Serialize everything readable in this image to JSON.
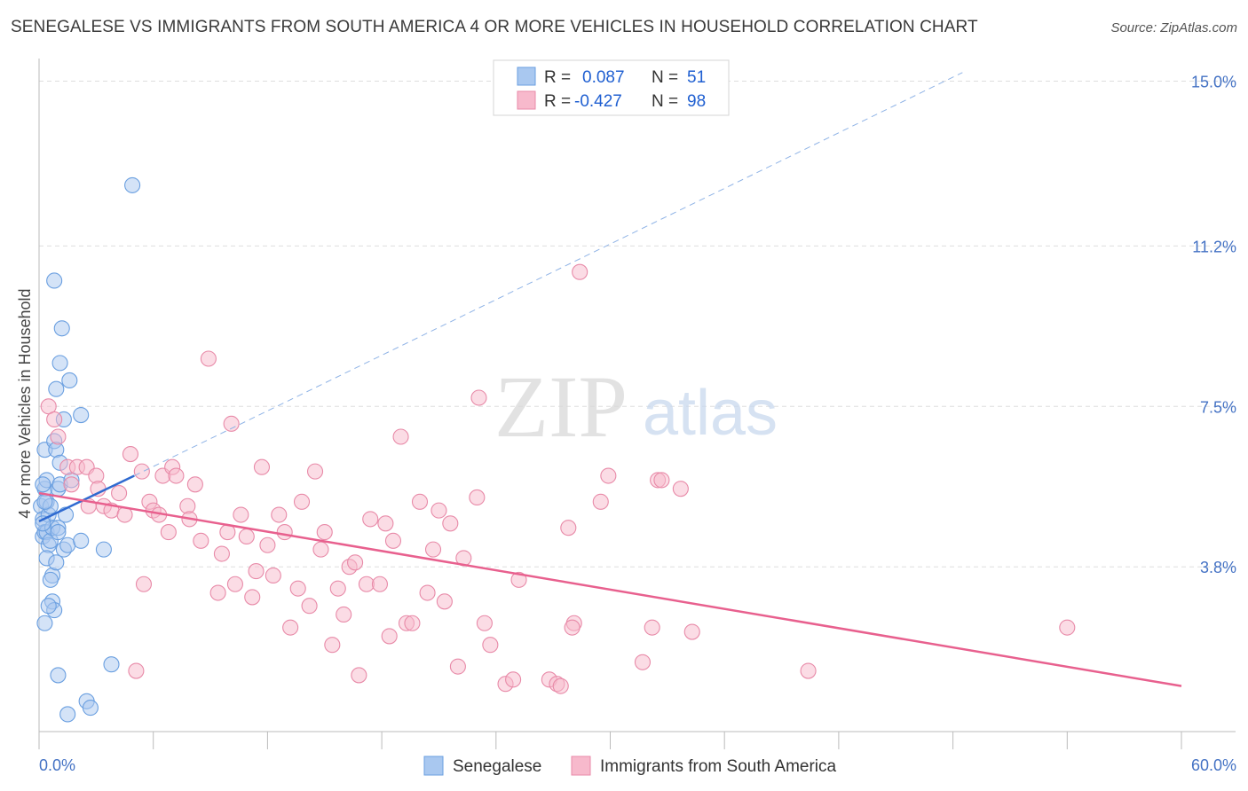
{
  "title": "SENEGALESE VS IMMIGRANTS FROM SOUTH AMERICA 4 OR MORE VEHICLES IN HOUSEHOLD CORRELATION CHART",
  "source": "Source: ZipAtlas.com",
  "watermark": {
    "zip": "ZIP",
    "atlas": "atlas"
  },
  "legend_top": {
    "r_label": "R =",
    "n_label": "N =",
    "rows": [
      {
        "r": "0.087",
        "n": "51",
        "color": "#a9c8f0"
      },
      {
        "r": "-0.427",
        "n": "98",
        "color": "#f7b9cc"
      }
    ]
  },
  "legend_bottom": [
    {
      "label": "Senegalese",
      "color": "#a9c8f0"
    },
    {
      "label": "Immigrants from South America",
      "color": "#f7b9cc"
    }
  ],
  "chart_data": {
    "type": "scatter",
    "ylabel": "4 or more Vehicles in Household",
    "xlim": [
      0,
      60
    ],
    "ylim": [
      0,
      15.4
    ],
    "x_tick_labels": [
      {
        "value": 0,
        "label": "0.0%"
      },
      {
        "value": 60,
        "label": "60.0%"
      }
    ],
    "y_tick_labels": [
      {
        "value": 3.8,
        "label": "3.8%"
      },
      {
        "value": 7.5,
        "label": "7.5%"
      },
      {
        "value": 11.2,
        "label": "11.2%"
      },
      {
        "value": 15.0,
        "label": "15.0%"
      }
    ],
    "grid": true,
    "series": [
      {
        "name": "Senegalese",
        "color": "#6a9fe0",
        "fill": "#a9c8f0",
        "trend": {
          "x0": 0,
          "y0": 4.85,
          "x1": 5.0,
          "y1": 5.9,
          "dash_to_x": 48.5,
          "dash_to_y": 15.2,
          "color": "#2f6ad0"
        },
        "points": [
          [
            0.1,
            5.2
          ],
          [
            0.2,
            4.5
          ],
          [
            0.2,
            4.9
          ],
          [
            0.3,
            4.6
          ],
          [
            0.3,
            5.6
          ],
          [
            0.3,
            6.5
          ],
          [
            0.4,
            4.6
          ],
          [
            0.4,
            5.3
          ],
          [
            0.4,
            5.8
          ],
          [
            0.5,
            4.3
          ],
          [
            0.5,
            5.0
          ],
          [
            0.6,
            4.4
          ],
          [
            0.6,
            5.2
          ],
          [
            0.7,
            4.7
          ],
          [
            0.7,
            3.6
          ],
          [
            0.7,
            3.0
          ],
          [
            0.8,
            2.8
          ],
          [
            0.8,
            6.7
          ],
          [
            0.8,
            10.4
          ],
          [
            0.9,
            7.9
          ],
          [
            0.9,
            6.5
          ],
          [
            1.0,
            5.6
          ],
          [
            1.0,
            4.7
          ],
          [
            1.0,
            1.3
          ],
          [
            1.1,
            6.2
          ],
          [
            1.1,
            8.5
          ],
          [
            1.1,
            5.7
          ],
          [
            1.2,
            9.3
          ],
          [
            1.3,
            4.2
          ],
          [
            1.3,
            7.2
          ],
          [
            1.4,
            5.0
          ],
          [
            1.5,
            0.4
          ],
          [
            1.5,
            4.3
          ],
          [
            1.6,
            8.1
          ],
          [
            1.7,
            5.8
          ],
          [
            2.2,
            7.3
          ],
          [
            2.2,
            4.4
          ],
          [
            2.5,
            0.7
          ],
          [
            2.7,
            0.55
          ],
          [
            3.4,
            4.2
          ],
          [
            3.8,
            1.55
          ],
          [
            4.9,
            12.6
          ],
          [
            0.2,
            4.8
          ],
          [
            0.4,
            4.0
          ],
          [
            0.6,
            3.5
          ],
          [
            0.3,
            2.5
          ],
          [
            0.5,
            2.9
          ],
          [
            0.9,
            3.9
          ],
          [
            0.3,
            5.3
          ],
          [
            1.0,
            4.6
          ],
          [
            0.2,
            5.7
          ]
        ]
      },
      {
        "name": "Immigrants from South America",
        "color": "#e88aa8",
        "fill": "#f7b9cc",
        "trend": {
          "x0": 0,
          "y0": 5.5,
          "x1": 60,
          "y1": 1.05,
          "color": "#e8608e"
        },
        "points": [
          [
            0.5,
            7.5
          ],
          [
            0.8,
            7.2
          ],
          [
            1.0,
            6.8
          ],
          [
            1.5,
            6.1
          ],
          [
            1.7,
            5.7
          ],
          [
            2.0,
            6.1
          ],
          [
            2.5,
            6.1
          ],
          [
            3.0,
            5.9
          ],
          [
            2.6,
            5.2
          ],
          [
            3.1,
            5.6
          ],
          [
            3.4,
            5.2
          ],
          [
            3.8,
            5.1
          ],
          [
            4.2,
            5.5
          ],
          [
            4.5,
            5.0
          ],
          [
            4.8,
            6.4
          ],
          [
            5.1,
            1.4
          ],
          [
            5.4,
            6.0
          ],
          [
            5.5,
            3.4
          ],
          [
            5.8,
            5.3
          ],
          [
            6.0,
            5.1
          ],
          [
            6.3,
            5.0
          ],
          [
            6.5,
            5.9
          ],
          [
            6.8,
            4.6
          ],
          [
            7.0,
            6.1
          ],
          [
            7.2,
            5.9
          ],
          [
            7.8,
            5.2
          ],
          [
            7.9,
            4.9
          ],
          [
            8.2,
            5.7
          ],
          [
            8.5,
            4.4
          ],
          [
            8.9,
            8.6
          ],
          [
            9.4,
            3.2
          ],
          [
            9.6,
            4.1
          ],
          [
            9.9,
            4.6
          ],
          [
            10.1,
            7.1
          ],
          [
            10.3,
            3.4
          ],
          [
            10.6,
            5.0
          ],
          [
            10.9,
            4.5
          ],
          [
            11.2,
            3.1
          ],
          [
            11.4,
            3.7
          ],
          [
            11.7,
            6.1
          ],
          [
            12.0,
            4.3
          ],
          [
            12.3,
            3.6
          ],
          [
            12.6,
            5.0
          ],
          [
            12.9,
            4.6
          ],
          [
            13.2,
            2.4
          ],
          [
            13.6,
            3.3
          ],
          [
            13.8,
            5.3
          ],
          [
            14.2,
            2.9
          ],
          [
            14.5,
            6.0
          ],
          [
            14.8,
            4.2
          ],
          [
            15.0,
            4.6
          ],
          [
            15.4,
            2.0
          ],
          [
            15.7,
            3.3
          ],
          [
            16.0,
            2.7
          ],
          [
            16.3,
            3.8
          ],
          [
            16.6,
            3.9
          ],
          [
            16.8,
            1.3
          ],
          [
            17.2,
            3.4
          ],
          [
            17.4,
            4.9
          ],
          [
            17.9,
            3.4
          ],
          [
            18.2,
            4.8
          ],
          [
            18.4,
            2.2
          ],
          [
            18.6,
            4.4
          ],
          [
            19.0,
            6.8
          ],
          [
            19.3,
            2.5
          ],
          [
            19.6,
            2.5
          ],
          [
            20.0,
            5.3
          ],
          [
            20.4,
            3.2
          ],
          [
            20.7,
            4.2
          ],
          [
            21.0,
            5.1
          ],
          [
            21.3,
            3.0
          ],
          [
            21.6,
            4.8
          ],
          [
            22.0,
            1.5
          ],
          [
            22.3,
            4.0
          ],
          [
            23.0,
            5.4
          ],
          [
            23.1,
            7.7
          ],
          [
            23.4,
            2.5
          ],
          [
            23.7,
            2.0
          ],
          [
            24.5,
            1.1
          ],
          [
            24.9,
            1.2
          ],
          [
            25.2,
            3.5
          ],
          [
            26.8,
            1.2
          ],
          [
            27.2,
            1.1
          ],
          [
            27.4,
            1.05
          ],
          [
            27.8,
            4.7
          ],
          [
            28.1,
            2.5
          ],
          [
            28.0,
            2.4
          ],
          [
            29.5,
            5.3
          ],
          [
            29.9,
            5.9
          ],
          [
            31.7,
            1.6
          ],
          [
            32.2,
            2.4
          ],
          [
            32.5,
            5.8
          ],
          [
            32.7,
            5.8
          ],
          [
            33.7,
            5.6
          ],
          [
            34.3,
            2.3
          ],
          [
            28.4,
            10.6
          ],
          [
            40.4,
            1.4
          ],
          [
            54.0,
            2.4
          ]
        ]
      }
    ]
  }
}
